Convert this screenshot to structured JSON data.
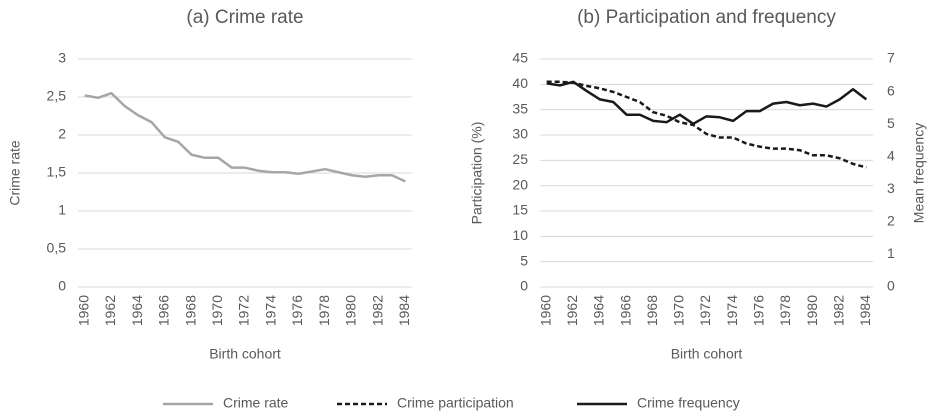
{
  "chart_data": [
    {
      "type": "line",
      "title": "(a) Crime rate",
      "xlabel": "Birth cohort",
      "ylabel": "Crime rate",
      "categories": [
        1960,
        null,
        1962,
        null,
        1964,
        null,
        1966,
        null,
        1968,
        null,
        1970,
        null,
        1972,
        null,
        1974,
        null,
        1976,
        null,
        1978,
        null,
        1980,
        null,
        1982,
        null,
        1984
      ],
      "series": [
        {
          "name": "Crime rate",
          "color": "#a6a6a6",
          "dashed": false,
          "values": [
            2.52,
            2.49,
            2.55,
            2.38,
            2.26,
            2.17,
            1.97,
            1.91,
            1.74,
            1.7,
            1.7,
            1.57,
            1.57,
            1.53,
            1.51,
            1.51,
            1.49,
            1.52,
            1.55,
            1.51,
            1.47,
            1.45,
            1.47,
            1.47,
            1.39
          ]
        }
      ],
      "ylim": [
        0,
        3
      ],
      "yticks": [
        0,
        {
          "value": 0.5,
          "label": "0,5"
        },
        1,
        {
          "value": 1.5,
          "label": "1,5"
        },
        2,
        {
          "value": 2.5,
          "label": "2,5"
        },
        3
      ],
      "grid": true
    },
    {
      "type": "line",
      "title": "(b) Participation and frequency",
      "xlabel": "Birth cohort",
      "ylabel": "Participation (%)",
      "y2label": "Mean frequency",
      "categories": [
        1960,
        null,
        1962,
        null,
        1964,
        null,
        1966,
        null,
        1968,
        null,
        1970,
        null,
        1972,
        null,
        1974,
        null,
        1976,
        null,
        1978,
        null,
        1980,
        null,
        1982,
        null,
        1984
      ],
      "series": [
        {
          "name": "Crime participation",
          "color": "#1a1a1a",
          "dashed": true,
          "values": [
            40.5,
            40.5,
            40.3,
            39.7,
            39.2,
            38.5,
            37.5,
            36.5,
            34.5,
            33.8,
            32.5,
            32.0,
            30.2,
            29.5,
            29.5,
            28.3,
            27.7,
            27.3,
            27.3,
            27.0,
            26.0,
            26.0,
            25.4,
            24.3,
            23.6
          ]
        },
        {
          "name": "Crime frequency",
          "color": "#1a1a1a",
          "dashed": false,
          "axis": "y2",
          "values": [
            6.25,
            6.19,
            6.3,
            6.02,
            5.76,
            5.68,
            5.29,
            5.29,
            5.1,
            5.06,
            5.29,
            5.01,
            5.24,
            5.21,
            5.1,
            5.4,
            5.4,
            5.63,
            5.68,
            5.58,
            5.63,
            5.54,
            5.76,
            6.07,
            5.76
          ]
        }
      ],
      "ylim": [
        0,
        45
      ],
      "yticks": [
        0,
        5,
        10,
        15,
        20,
        25,
        30,
        35,
        40,
        45
      ],
      "y2lim": [
        0,
        7
      ],
      "y2ticks": [
        0,
        1,
        2,
        3,
        4,
        5,
        6,
        7
      ],
      "grid": true
    }
  ]
}
